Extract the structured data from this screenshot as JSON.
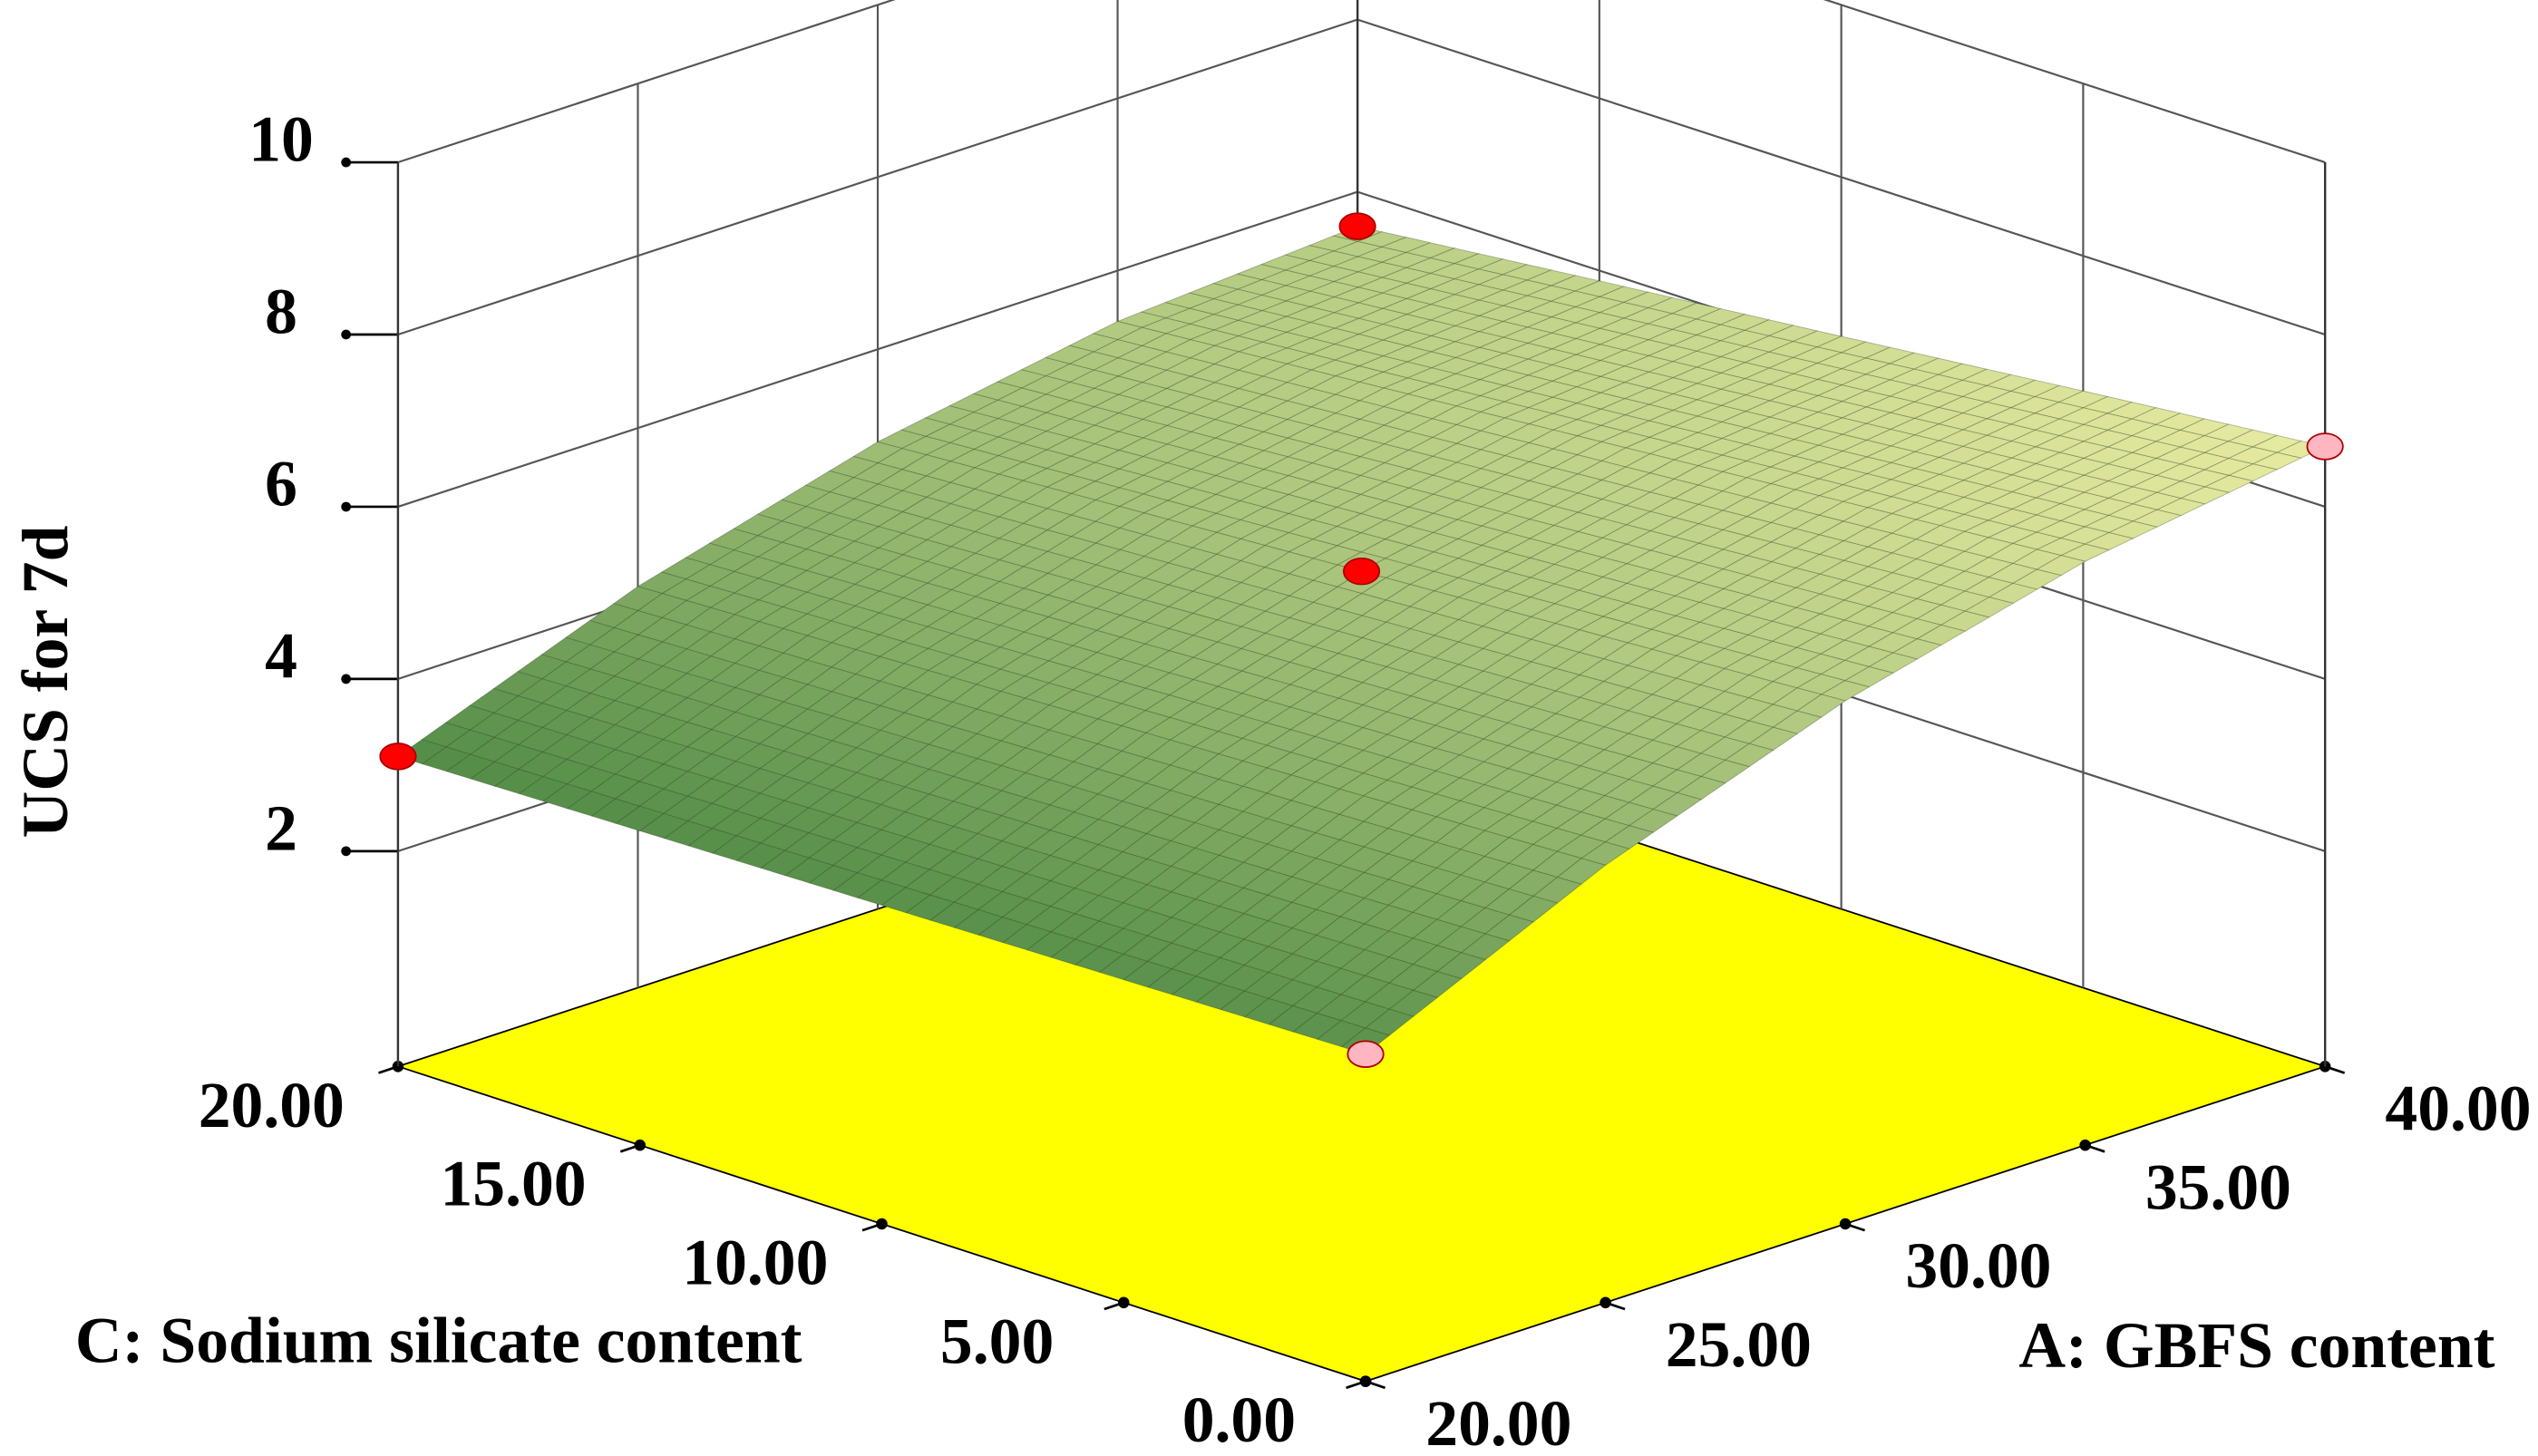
{
  "chart_data": {
    "type": "surface3d",
    "x_label": "A: GBFS content",
    "y_label": "C: Sodium silicate content",
    "z_label": "UCS for 7d",
    "x": [
      20,
      25,
      30,
      35,
      40
    ],
    "y": [
      0,
      5,
      10,
      15,
      20
    ],
    "z": [
      [
        3.3,
        4.58,
        5.575,
        6.28,
        6.7
      ],
      [
        3.25,
        4.47,
        5.41,
        6.06,
        6.43
      ],
      [
        3.2,
        4.37,
        5.25,
        5.84,
        6.15
      ],
      [
        3.15,
        4.26,
        5.09,
        5.62,
        5.88
      ],
      [
        3.1,
        4.16,
        4.925,
        5.41,
        5.6
      ]
    ],
    "xlim": [
      20,
      40
    ],
    "ylim": [
      0,
      20
    ],
    "zlim": [
      -0.5,
      10
    ],
    "xticks": [
      {
        "value": 20,
        "label": "20.00"
      },
      {
        "value": 25,
        "label": "25.00"
      },
      {
        "value": 30,
        "label": "30.00"
      },
      {
        "value": 35,
        "label": "35.00"
      },
      {
        "value": 40,
        "label": "40.00"
      }
    ],
    "yticks": [
      {
        "value": 0,
        "label": "0.00"
      },
      {
        "value": 5,
        "label": "5.00"
      },
      {
        "value": 10,
        "label": "10.00"
      },
      {
        "value": 15,
        "label": "15.00"
      },
      {
        "value": 20,
        "label": "20.00"
      }
    ],
    "zticks": [
      2,
      4,
      6,
      8,
      10
    ],
    "points": {
      "x": [
        20,
        40,
        30,
        40,
        20
      ],
      "y": [
        20,
        20,
        10,
        0,
        0
      ],
      "z": [
        3.1,
        5.6,
        5.25,
        6.7,
        3.3
      ],
      "colors": [
        "#ff0000",
        "#ff0000",
        "#ff0000",
        "#ffb6c1",
        "#ffb6c1"
      ]
    },
    "floor_color": "#ffff00",
    "surface_colors": [
      "#4f8a45",
      "#f3f3a8"
    ]
  }
}
